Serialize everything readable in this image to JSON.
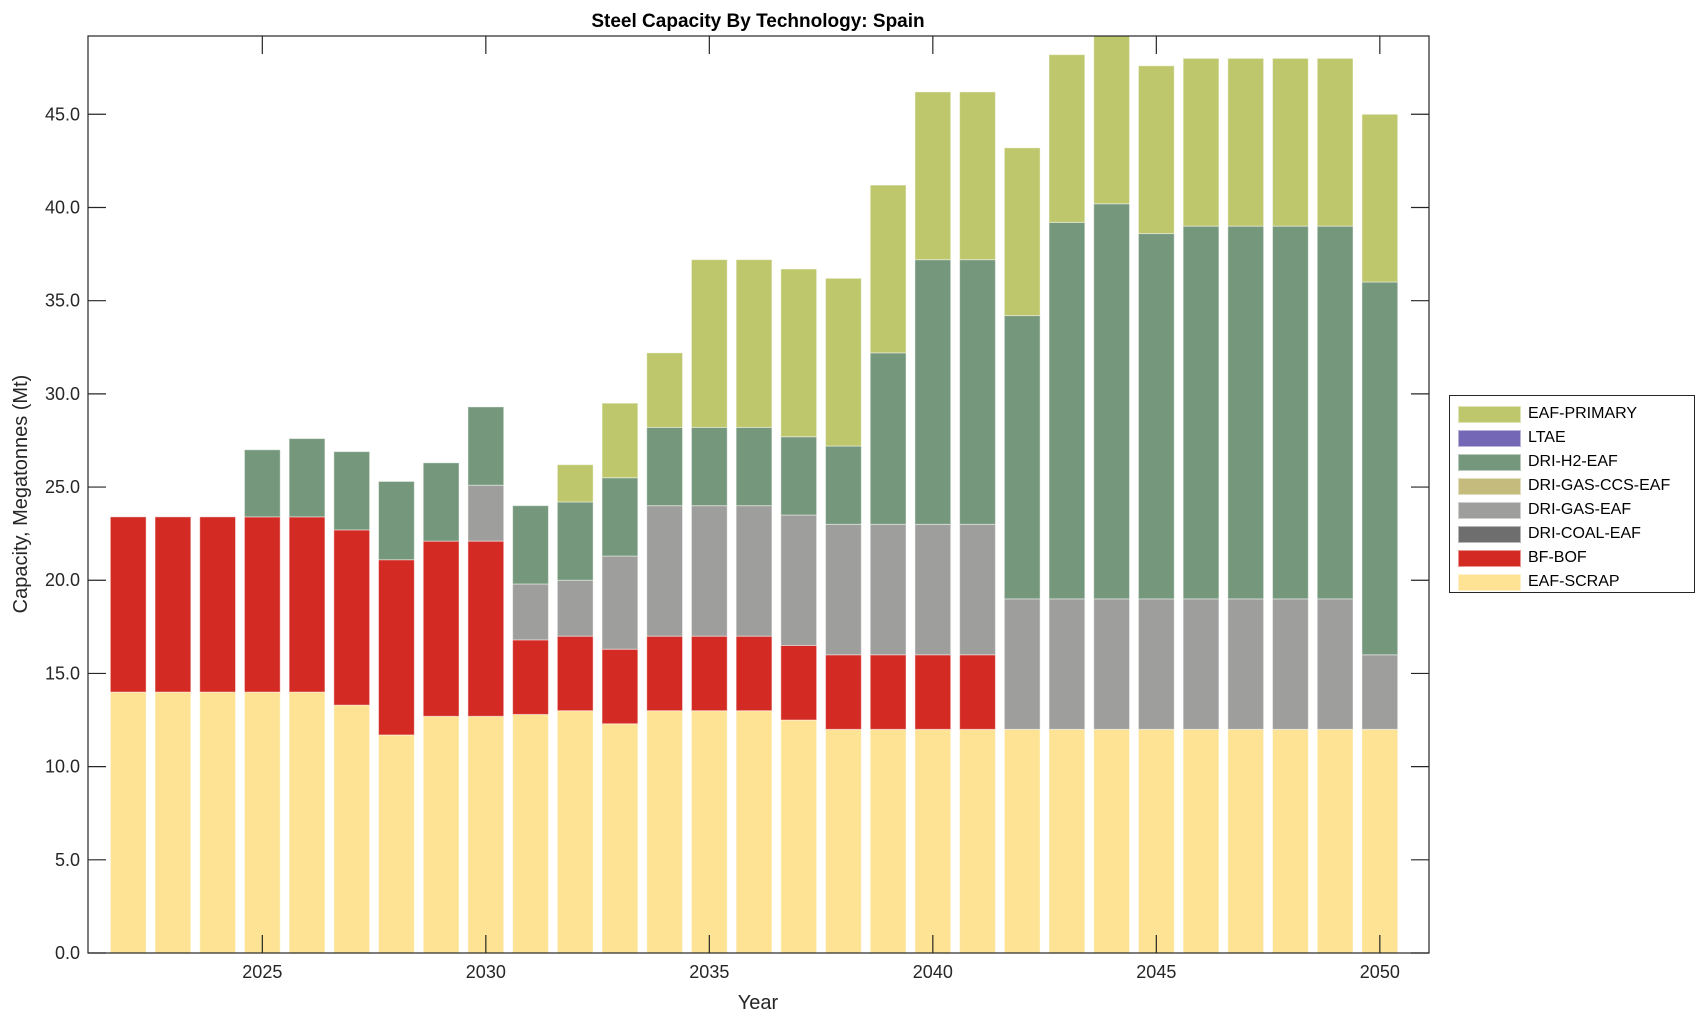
{
  "chart_data": {
    "type": "bar",
    "stacked": true,
    "title": "Steel Capacity By Technology: Spain",
    "xlabel": "Year",
    "ylabel": "Capacity, Megatonnes (Mt)",
    "ylim": [
      0,
      49.2
    ],
    "yticks": [
      0,
      5,
      10,
      15,
      20,
      25,
      30,
      35,
      40,
      45
    ],
    "ytick_labels": [
      "0.0",
      "5.0",
      "10.0",
      "15.0",
      "20.0",
      "25.0",
      "30.0",
      "35.0",
      "40.0",
      "45.0"
    ],
    "xticks": [
      2025,
      2030,
      2035,
      2040,
      2045,
      2050
    ],
    "xtick_labels": [
      "2025",
      "2030",
      "2035",
      "2040",
      "2045",
      "2050"
    ],
    "xlim": [
      2021.1,
      2051.1
    ],
    "grid": false,
    "legend_position": "right-outside",
    "categories": [
      2022,
      2023,
      2024,
      2025,
      2026,
      2027,
      2028,
      2029,
      2030,
      2031,
      2032,
      2033,
      2034,
      2035,
      2036,
      2037,
      2038,
      2039,
      2040,
      2041,
      2042,
      2043,
      2044,
      2045,
      2046,
      2047,
      2048,
      2049,
      2050
    ],
    "series": [
      {
        "name": "EAF-SCRAP",
        "color": "#fde393",
        "values": [
          14.0,
          14.0,
          14.0,
          14.0,
          14.0,
          13.3,
          11.7,
          12.7,
          12.7,
          12.8,
          13.0,
          12.3,
          13.0,
          13.0,
          13.0,
          12.5,
          12.0,
          12.0,
          12.0,
          12.0,
          12.0,
          12.0,
          12.0,
          12.0,
          12.0,
          12.0,
          12.0,
          12.0,
          12.0
        ]
      },
      {
        "name": "BF-BOF",
        "color": "#d32a24",
        "values": [
          9.4,
          9.4,
          9.4,
          9.4,
          9.4,
          9.4,
          9.4,
          9.4,
          9.4,
          4.0,
          4.0,
          4.0,
          4.0,
          4.0,
          4.0,
          4.0,
          4.0,
          4.0,
          4.0,
          4.0,
          0,
          0,
          0,
          0,
          0,
          0,
          0,
          0,
          0
        ]
      },
      {
        "name": "DRI-COAL-EAF",
        "color": "#6e6e6e",
        "values": [
          0,
          0,
          0,
          0,
          0,
          0,
          0,
          0,
          0,
          0,
          0,
          0,
          0,
          0,
          0,
          0,
          0,
          0,
          0,
          0,
          0,
          0,
          0,
          0,
          0,
          0,
          0,
          0,
          0
        ]
      },
      {
        "name": "DRI-GAS-EAF",
        "color": "#9e9e9c",
        "values": [
          0,
          0,
          0,
          0,
          0,
          0,
          0,
          0,
          3.0,
          3.0,
          3.0,
          5.0,
          7.0,
          7.0,
          7.0,
          7.0,
          7.0,
          7.0,
          7.0,
          7.0,
          7.0,
          7.0,
          7.0,
          7.0,
          7.0,
          7.0,
          7.0,
          7.0,
          4.0
        ]
      },
      {
        "name": "DRI-GAS-CCS-EAF",
        "color": "#c4bb7c",
        "values": [
          0,
          0,
          0,
          0,
          0,
          0,
          0,
          0,
          0,
          0,
          0,
          0,
          0,
          0,
          0,
          0,
          0,
          0,
          0,
          0,
          0,
          0,
          0,
          0,
          0,
          0,
          0,
          0,
          0
        ]
      },
      {
        "name": "DRI-H2-EAF",
        "color": "#75977c",
        "values": [
          0,
          0,
          0,
          3.6,
          4.2,
          4.2,
          4.2,
          4.2,
          4.2,
          4.2,
          4.2,
          4.2,
          4.2,
          4.2,
          4.2,
          4.2,
          4.2,
          9.2,
          14.2,
          14.2,
          15.2,
          20.2,
          21.2,
          19.6,
          20.0,
          20.0,
          20.0,
          20.0,
          20.0
        ]
      },
      {
        "name": "LTAE",
        "color": "#7468b6",
        "values": [
          0,
          0,
          0,
          0,
          0,
          0,
          0,
          0,
          0,
          0,
          0,
          0,
          0,
          0,
          0,
          0,
          0,
          0,
          0,
          0,
          0,
          0,
          0,
          0,
          0,
          0,
          0,
          0,
          0
        ]
      },
      {
        "name": "EAF-PRIMARY",
        "color": "#bec76b",
        "values": [
          0,
          0,
          0,
          0,
          0,
          0,
          0,
          0,
          0,
          0,
          2.0,
          4.0,
          4.0,
          9.0,
          9.0,
          9.0,
          9.0,
          9.0,
          9.0,
          9.0,
          9.0,
          9.0,
          9.0,
          9.0,
          9.0,
          9.0,
          9.0,
          9.0,
          9.0
        ]
      }
    ],
    "legend_order": [
      "EAF-PRIMARY",
      "LTAE",
      "DRI-H2-EAF",
      "DRI-GAS-CCS-EAF",
      "DRI-GAS-EAF",
      "DRI-COAL-EAF",
      "BF-BOF",
      "EAF-SCRAP"
    ]
  }
}
